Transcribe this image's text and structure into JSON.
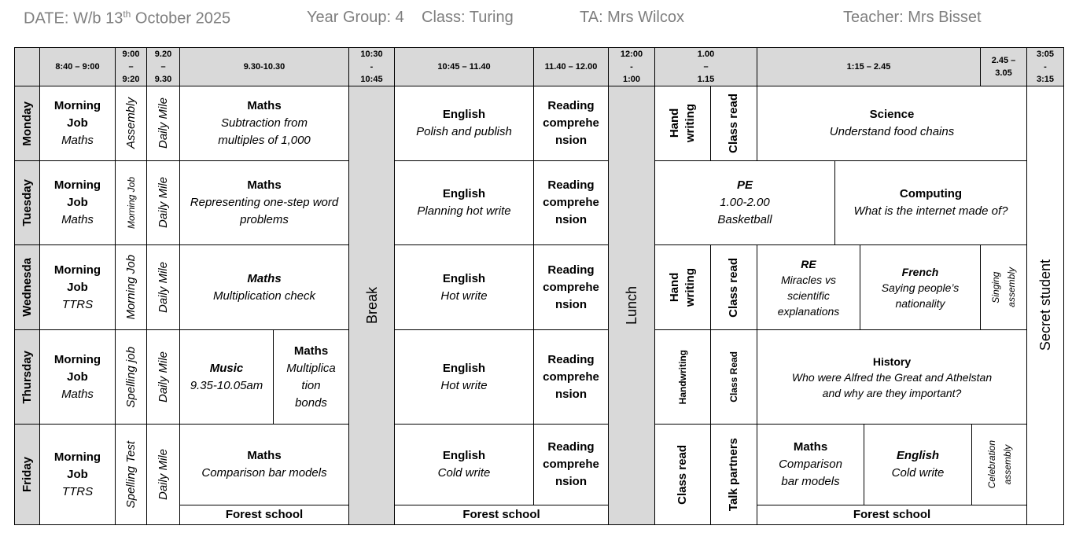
{
  "header": {
    "date": {
      "prefix": "DATE: W/b 13",
      "sup": "th",
      "suffix": "October 2025"
    },
    "year_group": "Year Group: 4",
    "class": "Class: Turing",
    "ta": "TA: Mrs Wilcox",
    "teacher": "Teacher: Mrs Bisset"
  },
  "table": {
    "time_headers": [
      [
        "8:40 – 9:00"
      ],
      [
        "9:00",
        "–",
        "9:20"
      ],
      [
        "9.20",
        "–",
        "9.30"
      ],
      [
        "9.30-10.30"
      ],
      [
        "10:30",
        "-",
        "10:45"
      ],
      [
        "10:45 – 11.40"
      ],
      [
        "11.40 – 12.00"
      ],
      [
        "12:00",
        "-",
        "1:00"
      ],
      [
        "1.00",
        "–",
        "1.15"
      ],
      [
        "1:15 – 2.45"
      ],
      [
        "2.45 –",
        "3.05"
      ],
      [
        "3:05",
        "-",
        "3:15"
      ]
    ],
    "break": "Break",
    "lunch": "Lunch",
    "secret": "Secret student",
    "days": [
      {
        "name": "Monday",
        "cells": [
          {
            "lines": [
              "Morning",
              "Job",
              "Maths"
            ]
          },
          {
            "lines": [
              "Assembly"
            ]
          },
          {
            "lines": [
              "Daily Mile"
            ]
          },
          {
            "lines": [
              "Maths",
              "Subtraction from",
              "multiples of 1,000"
            ]
          },
          {
            "lines": [
              "English",
              "Polish and publish"
            ]
          },
          {
            "lines": [
              "Reading",
              "comprehe",
              "nsion"
            ]
          },
          {
            "lines": [
              "Hand",
              "writing"
            ]
          },
          {
            "lines": [
              "Class read"
            ]
          },
          {
            "lines": [
              "Science",
              "Understand food chains"
            ]
          }
        ]
      },
      {
        "name": "Tuesday",
        "cells": [
          {
            "lines": [
              "Morning",
              "Job",
              "Maths"
            ]
          },
          {
            "lines": [
              "Morning Job"
            ]
          },
          {
            "lines": [
              "Daily Mile"
            ]
          },
          {
            "lines": [
              "Maths",
              "Representing one-step word",
              "problems"
            ]
          },
          {
            "lines": [
              "English",
              "Planning hot write"
            ]
          },
          {
            "lines": [
              "Reading",
              "comprehe",
              "nsion"
            ]
          },
          {
            "lines": [
              "PE",
              "1.00-2.00",
              "Basketball"
            ]
          },
          {
            "lines": [
              "Computing",
              "What is the internet made of?"
            ]
          }
        ]
      },
      {
        "name": "Wednesda",
        "cells": [
          {
            "lines": [
              "Morning",
              "Job",
              "TTRS"
            ]
          },
          {
            "lines": [
              "Morning Job"
            ]
          },
          {
            "lines": [
              "Daily Mile"
            ]
          },
          {
            "lines": [
              "Maths",
              "Multiplication check"
            ]
          },
          {
            "lines": [
              "English",
              "Hot write"
            ]
          },
          {
            "lines": [
              "Reading",
              "comprehe",
              "nsion"
            ]
          },
          {
            "lines": [
              "Hand",
              "writing"
            ]
          },
          {
            "lines": [
              "Class read"
            ]
          },
          {
            "lines": [
              "RE",
              "Miracles vs",
              "scientific",
              "explanations"
            ]
          },
          {
            "lines": [
              "French",
              "Saying people’s",
              "nationality"
            ]
          },
          {
            "lines": [
              "Singing",
              "assembly"
            ]
          }
        ]
      },
      {
        "name": "Thursday",
        "cells": [
          {
            "lines": [
              "Morning",
              "Job",
              "Maths"
            ]
          },
          {
            "lines": [
              "Spelling job"
            ]
          },
          {
            "lines": [
              "Daily Mile"
            ]
          },
          {
            "lines": [
              "Music",
              "9.35-10.05am"
            ]
          },
          {
            "lines": [
              "Maths",
              "Multiplica",
              "tion",
              "bonds"
            ]
          },
          {
            "lines": [
              "English",
              "Hot write"
            ]
          },
          {
            "lines": [
              "Reading",
              "comprehe",
              "nsion"
            ]
          },
          {
            "lines": [
              "Handwriting"
            ]
          },
          {
            "lines": [
              "Class Read"
            ]
          },
          {
            "lines": [
              "History",
              "Who were Alfred the Great and Athelstan",
              "and why are they important?"
            ]
          }
        ]
      },
      {
        "name": "Friday",
        "cells": [
          {
            "lines": [
              "Morning",
              "Job",
              "TTRS"
            ]
          },
          {
            "lines": [
              "Spelling Test"
            ]
          },
          {
            "lines": [
              "Daily Mile"
            ]
          },
          {
            "lines": [
              "Maths",
              "Comparison bar models"
            ]
          },
          {
            "lines": [
              "Forest school"
            ]
          },
          {
            "lines": [
              "English",
              "Cold write"
            ]
          },
          {
            "lines": [
              "Reading",
              "comprehe",
              "nsion"
            ]
          },
          {
            "lines": [
              "Forest school"
            ]
          },
          {
            "lines": [
              "Class read"
            ]
          },
          {
            "lines": [
              "Talk partners"
            ]
          },
          {
            "lines": [
              "Maths",
              "Comparison",
              "bar models"
            ]
          },
          {
            "lines": [
              "English",
              "Cold write"
            ]
          },
          {
            "lines": [
              "Celebration",
              "assembly"
            ]
          },
          {
            "lines": [
              "Forest school"
            ]
          }
        ]
      }
    ]
  }
}
